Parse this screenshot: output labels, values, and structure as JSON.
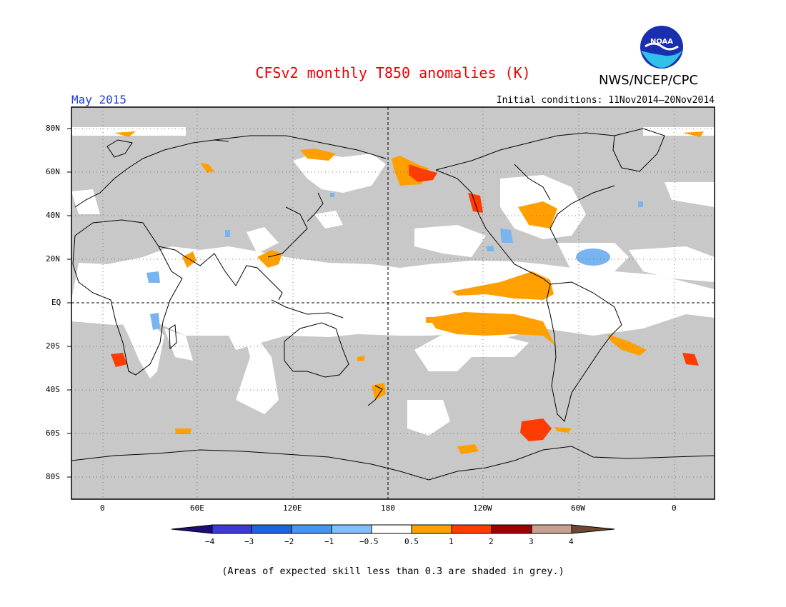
{
  "header": {
    "title": "CFSv2 monthly T850 anomalies (K)",
    "organization": "NWS/NCEP/CPC",
    "month": "May 2015",
    "initial_conditions": "Initial conditions: 11Nov2014–20Nov2014",
    "logo_text": "NOAA"
  },
  "map": {
    "lat_labels": [
      "80N",
      "60N",
      "40N",
      "20N",
      "EQ",
      "20S",
      "40S",
      "60S",
      "80S"
    ],
    "lon_labels": [
      "0",
      "60E",
      "120E",
      "180",
      "120W",
      "60W",
      "0"
    ],
    "colors": {
      "skill_grey": "#c8c8c8",
      "coast": "#000000",
      "warm_05_1": "#ffa000",
      "warm_1_2": "#ff3c00",
      "cool_m05_m1": "#78b4f0"
    }
  },
  "colorbar": {
    "ticks": [
      "−4",
      "−3",
      "−2",
      "−1",
      "−0.5",
      "0.5",
      "1",
      "2",
      "3",
      "4"
    ],
    "colors": [
      "#1e0a78",
      "#3c3cd2",
      "#1e64dc",
      "#4696f0",
      "#82befa",
      "#ffffff",
      "#ffa000",
      "#ff3c00",
      "#a00000",
      "#c8a090",
      "#6e4632"
    ]
  },
  "footnote": "(Areas of expected skill less than 0.3 are shaded in grey.)"
}
